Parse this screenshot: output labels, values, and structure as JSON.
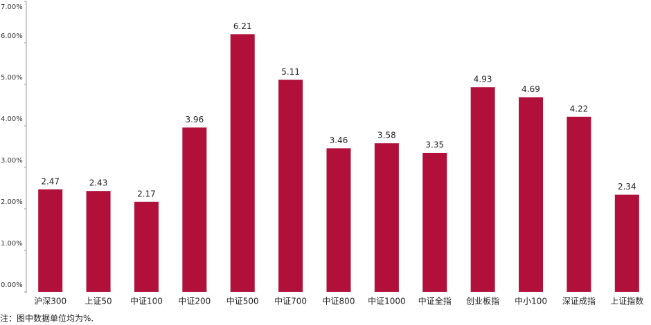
{
  "chart_data": {
    "type": "bar",
    "categories": [
      "沪深300",
      "上证50",
      "中证100",
      "中证200",
      "中证500",
      "中证700",
      "中证800",
      "中证1000",
      "中证全指",
      "创业板指",
      "中小100",
      "深证成指",
      "上证指数"
    ],
    "values": [
      2.47,
      2.43,
      2.17,
      3.96,
      6.21,
      5.11,
      3.46,
      3.58,
      3.35,
      4.93,
      4.69,
      4.22,
      2.34
    ],
    "color": "#b0103a",
    "ylim": [
      0,
      7
    ],
    "yticks": [
      {
        "value": 0,
        "label": "0.00%"
      },
      {
        "value": 1,
        "label": "1.00%"
      },
      {
        "value": 2,
        "label": "2.00%"
      },
      {
        "value": 3,
        "label": "3.00%"
      },
      {
        "value": 4,
        "label": "4.00%"
      },
      {
        "value": 5,
        "label": "5.00%"
      },
      {
        "value": 6,
        "label": "6.00%"
      },
      {
        "value": 7,
        "label": "7.00%"
      }
    ],
    "grid": false,
    "note": "注：图中数据单位均为%."
  }
}
